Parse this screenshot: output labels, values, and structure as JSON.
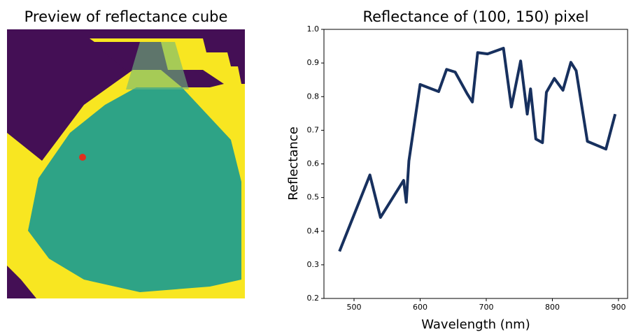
{
  "chart_data": [
    {
      "type": "image",
      "title": "Preview of reflectance cube"
    },
    {
      "type": "line",
      "title": "Reflectance of (100, 150) pixel",
      "xlabel": "Wavelength (nm)",
      "ylabel": "Reflectance",
      "x": [
        478,
        524,
        540,
        575,
        579,
        583,
        600,
        628,
        640,
        653,
        671,
        679,
        687,
        702,
        726,
        738,
        752,
        762,
        767,
        775,
        785,
        791,
        803,
        816,
        828,
        836,
        853,
        881,
        895
      ],
      "values": [
        0.34,
        0.567,
        0.441,
        0.551,
        0.486,
        0.609,
        0.836,
        0.815,
        0.881,
        0.873,
        0.809,
        0.784,
        0.931,
        0.927,
        0.944,
        0.769,
        0.906,
        0.748,
        0.823,
        0.674,
        0.663,
        0.813,
        0.854,
        0.819,
        0.902,
        0.877,
        0.667,
        0.644,
        0.748
      ],
      "color": "#17305e",
      "xlim": [
        454.5,
        913.8
      ],
      "ylim": [
        0.2,
        1.0
      ],
      "xticks": [
        500,
        600,
        700,
        800,
        900
      ],
      "yticks": [
        0.2,
        0.3,
        0.4,
        0.5,
        0.6,
        0.7,
        0.8,
        0.9,
        {
          "value": 1,
          "label": "1.0"
        }
      ]
    }
  ]
}
